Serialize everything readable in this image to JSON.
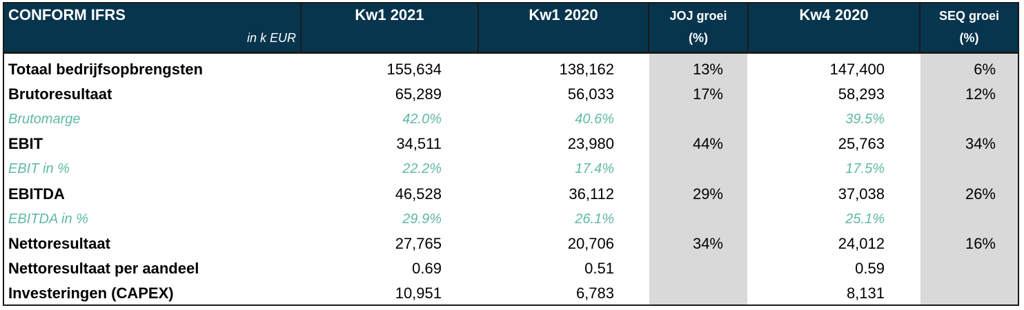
{
  "header": {
    "title": "CONFORM IFRS",
    "unit": "in k EUR",
    "columns": [
      {
        "line1": "Kw1 2021",
        "line2": ""
      },
      {
        "line1": "Kw1 2020",
        "line2": ""
      },
      {
        "line1": "JOJ groei",
        "line2": "(%)"
      },
      {
        "line1": "Kw4 2020",
        "line2": ""
      },
      {
        "line1": "SEQ groei",
        "line2": "(%)"
      }
    ]
  },
  "rows": [
    {
      "label": "Totaal bedrijfsopbrengsten",
      "kw1_2021": "155,634",
      "kw1_2020": "138,162",
      "joj": "13%",
      "kw4_2020": "147,400",
      "seq": "6%",
      "style": "main"
    },
    {
      "label": "Brutoresultaat",
      "kw1_2021": "65,289",
      "kw1_2020": "56,033",
      "joj": "17%",
      "kw4_2020": "58,293",
      "seq": "12%",
      "style": "main"
    },
    {
      "label": "Brutomarge",
      "kw1_2021": "42.0%",
      "kw1_2020": "40.6%",
      "joj": "",
      "kw4_2020": "39.5%",
      "seq": "",
      "style": "ratio"
    },
    {
      "label": "EBIT",
      "kw1_2021": "34,511",
      "kw1_2020": "23,980",
      "joj": "44%",
      "kw4_2020": "25,763",
      "seq": "34%",
      "style": "main"
    },
    {
      "label": "EBIT in %",
      "kw1_2021": "22.2%",
      "kw1_2020": "17.4%",
      "joj": "",
      "kw4_2020": "17.5%",
      "seq": "",
      "style": "ratio"
    },
    {
      "label": "EBITDA",
      "kw1_2021": "46,528",
      "kw1_2020": "36,112",
      "joj": "29%",
      "kw4_2020": "37,038",
      "seq": "26%",
      "style": "main"
    },
    {
      "label": "EBITDA in %",
      "kw1_2021": "29.9%",
      "kw1_2020": "26.1%",
      "joj": "",
      "kw4_2020": "25.1%",
      "seq": "",
      "style": "ratio"
    },
    {
      "label": "Nettoresultaat",
      "kw1_2021": "27,765",
      "kw1_2020": "20,706",
      "joj": "34%",
      "kw4_2020": "24,012",
      "seq": "16%",
      "style": "main"
    },
    {
      "label": "Nettoresultaat per aandeel",
      "kw1_2021": "0.69",
      "kw1_2020": "0.51",
      "joj": "",
      "kw4_2020": "0.59",
      "seq": "",
      "style": "main"
    },
    {
      "label": "Investeringen (CAPEX)",
      "kw1_2021": "10,951",
      "kw1_2020": "6,783",
      "joj": "",
      "kw4_2020": "8,131",
      "seq": "",
      "style": "main"
    }
  ],
  "colors": {
    "header_bg": "#07354d",
    "ratio_text": "#5fb9a4",
    "growth_bg": "#d9d9d9"
  }
}
